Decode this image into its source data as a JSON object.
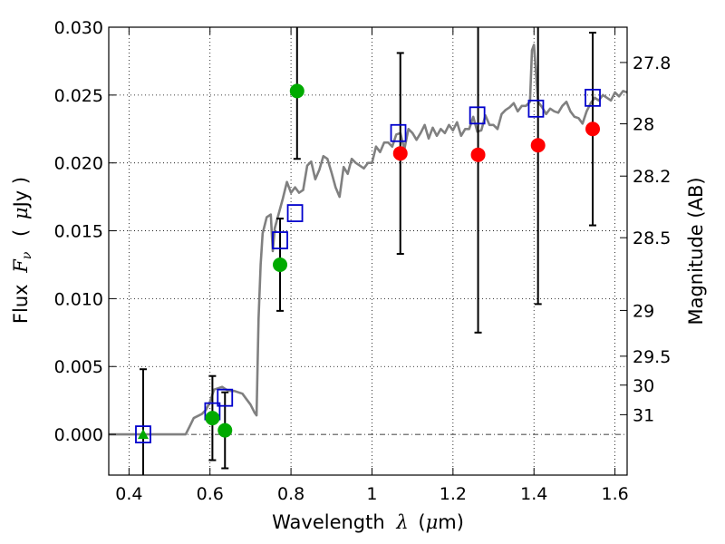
{
  "chart_data": {
    "type": "scatter",
    "xlabel": "Wavelength",
    "xlabel_symbol": "λ",
    "xlabel_unit_open": "(",
    "xlabel_unit_mu": "μ",
    "xlabel_unit_rest": "m)",
    "ylabel": "Flux",
    "ylabel_symbol": "F",
    "ylabel_subscript": "ν",
    "ylabel_unit_open": "(",
    "ylabel_unit_mu": "μ",
    "ylabel_unit_rest": "Jy )",
    "y2label": "Magnitude (AB)",
    "xlim": [
      0.35,
      1.63
    ],
    "ylim": [
      -0.003,
      0.03
    ],
    "grid": true,
    "x_ticks": [
      0.4,
      0.6,
      0.8,
      1.0,
      1.2,
      1.4,
      1.6
    ],
    "x_tick_labels": [
      "0.4",
      "0.6",
      "0.8",
      "1",
      "1.2",
      "1.4",
      "1.6"
    ],
    "y_ticks": [
      0.0,
      0.005,
      0.01,
      0.015,
      0.02,
      0.025,
      0.03
    ],
    "y_tick_labels": [
      "0.000",
      "0.005",
      "0.010",
      "0.015",
      "0.020",
      "0.025",
      "0.030"
    ],
    "y2_ticks": [
      {
        "label": "27.8",
        "flux": 0.0274
      },
      {
        "label": "28",
        "flux": 0.02288
      },
      {
        "label": "28.2",
        "flux": 0.01903
      },
      {
        "label": "28.5",
        "flux": 0.01449
      },
      {
        "label": "29",
        "flux": 0.00913
      },
      {
        "label": "29.5",
        "flux": 0.00576
      },
      {
        "label": "30",
        "flux": 0.00363
      },
      {
        "label": "31",
        "flux": 0.00145
      }
    ],
    "series": [
      {
        "name": "template_spectrum",
        "kind": "line",
        "color": "#808080",
        "x": [
          0.35,
          0.54,
          0.55,
          0.56,
          0.58,
          0.59,
          0.6,
          0.61,
          0.62,
          0.63,
          0.64,
          0.65,
          0.66,
          0.67,
          0.68,
          0.69,
          0.7,
          0.71,
          0.715,
          0.72,
          0.725,
          0.73,
          0.74,
          0.75,
          0.755,
          0.76,
          0.77,
          0.78,
          0.79,
          0.8,
          0.81,
          0.82,
          0.83,
          0.84,
          0.85,
          0.86,
          0.87,
          0.88,
          0.89,
          0.9,
          0.91,
          0.92,
          0.93,
          0.94,
          0.95,
          0.96,
          0.97,
          0.98,
          0.99,
          1.0,
          1.01,
          1.02,
          1.03,
          1.04,
          1.05,
          1.06,
          1.07,
          1.08,
          1.09,
          1.1,
          1.11,
          1.12,
          1.13,
          1.14,
          1.15,
          1.16,
          1.17,
          1.18,
          1.19,
          1.2,
          1.21,
          1.22,
          1.23,
          1.24,
          1.25,
          1.26,
          1.27,
          1.28,
          1.29,
          1.3,
          1.31,
          1.32,
          1.33,
          1.34,
          1.35,
          1.36,
          1.37,
          1.38,
          1.39,
          1.395,
          1.4,
          1.405,
          1.41,
          1.42,
          1.43,
          1.44,
          1.45,
          1.46,
          1.47,
          1.48,
          1.49,
          1.5,
          1.51,
          1.52,
          1.53,
          1.54,
          1.55,
          1.56,
          1.57,
          1.58,
          1.59,
          1.6,
          1.61,
          1.62,
          1.63
        ],
        "y": [
          0.0,
          0.0,
          0.0006,
          0.0012,
          0.0015,
          0.0018,
          0.0024,
          0.0033,
          0.0034,
          0.0035,
          0.0033,
          0.0032,
          0.0032,
          0.0031,
          0.003,
          0.0026,
          0.0022,
          0.0016,
          0.0014,
          0.0085,
          0.0125,
          0.0148,
          0.016,
          0.0162,
          0.0135,
          0.0152,
          0.0163,
          0.0174,
          0.0186,
          0.0178,
          0.0182,
          0.0178,
          0.018,
          0.0198,
          0.0201,
          0.0188,
          0.0195,
          0.0205,
          0.0203,
          0.0193,
          0.0182,
          0.0175,
          0.0197,
          0.0192,
          0.0203,
          0.02,
          0.0198,
          0.0196,
          0.02,
          0.02,
          0.0212,
          0.0208,
          0.0215,
          0.0215,
          0.0212,
          0.0221,
          0.0222,
          0.021,
          0.0225,
          0.0222,
          0.0217,
          0.0222,
          0.0228,
          0.0218,
          0.0226,
          0.022,
          0.0225,
          0.0222,
          0.0228,
          0.0224,
          0.023,
          0.022,
          0.0225,
          0.0225,
          0.0234,
          0.0223,
          0.0224,
          0.0235,
          0.0228,
          0.0228,
          0.0225,
          0.0236,
          0.0239,
          0.0241,
          0.0244,
          0.0238,
          0.0242,
          0.0242,
          0.0245,
          0.0283,
          0.0287,
          0.0266,
          0.0245,
          0.0241,
          0.0236,
          0.024,
          0.0238,
          0.0237,
          0.0242,
          0.0245,
          0.0238,
          0.0234,
          0.0233,
          0.0229,
          0.0238,
          0.0244,
          0.0248,
          0.0246,
          0.025,
          0.0248,
          0.0246,
          0.0252,
          0.0249,
          0.0253,
          0.0252
        ]
      },
      {
        "name": "model_photometry",
        "kind": "open_square",
        "color": "#0000cc",
        "x": [
          0.435,
          0.606,
          0.637,
          0.773,
          0.81,
          1.065,
          1.26,
          1.405,
          1.545
        ],
        "y": [
          0.0,
          0.0017,
          0.0027,
          0.0143,
          0.0163,
          0.0222,
          0.0235,
          0.024,
          0.0248
        ]
      },
      {
        "name": "green_measurements",
        "kind": "filled_circle",
        "color": "#00aa00",
        "x": [
          0.606,
          0.637,
          0.773,
          0.815
        ],
        "y": [
          0.0012,
          0.0003,
          0.0125,
          0.0253
        ],
        "err": [
          0.0031,
          0.0028,
          0.0034,
          0.005
        ]
      },
      {
        "name": "green_upper_limit",
        "kind": "triangle",
        "color": "#00aa00",
        "x": [
          0.435
        ],
        "y": [
          0.0
        ],
        "err": [
          0.0048
        ]
      },
      {
        "name": "red_measurements",
        "kind": "filled_circle",
        "color": "#ff0000",
        "x": [
          1.07,
          1.262,
          1.41,
          1.545
        ],
        "y": [
          0.0207,
          0.0206,
          0.0213,
          0.0225
        ],
        "err": [
          0.0074,
          0.0131,
          0.0117,
          0.0071
        ]
      }
    ]
  },
  "colors": {
    "grid": "#000000",
    "axes": "#000000",
    "background": "#ffffff",
    "error_bar": "#000000"
  }
}
